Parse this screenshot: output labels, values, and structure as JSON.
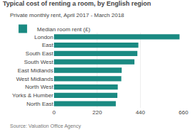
{
  "chart_data": {
    "type": "bar",
    "orientation": "horizontal",
    "title": "Typical cost of renting a room, by English region",
    "subtitle": "Private monthly rent, April 2017 - March 2018",
    "source": "Source: Valuation Office Agency",
    "categories": [
      "London",
      "East",
      "South East",
      "South West",
      "East Midlands",
      "West Midlands",
      "North West",
      "Yorks & Humber",
      "North East"
    ],
    "series": [
      {
        "name": "Median room rent (£)",
        "color": "#1a8a82",
        "values": [
          640,
          430,
          425,
          410,
          345,
          343,
          325,
          323,
          315
        ]
      }
    ],
    "xlim": [
      0,
      660
    ],
    "xticks": [
      0,
      220,
      440,
      660
    ],
    "grid": true,
    "legend": "upper left"
  }
}
